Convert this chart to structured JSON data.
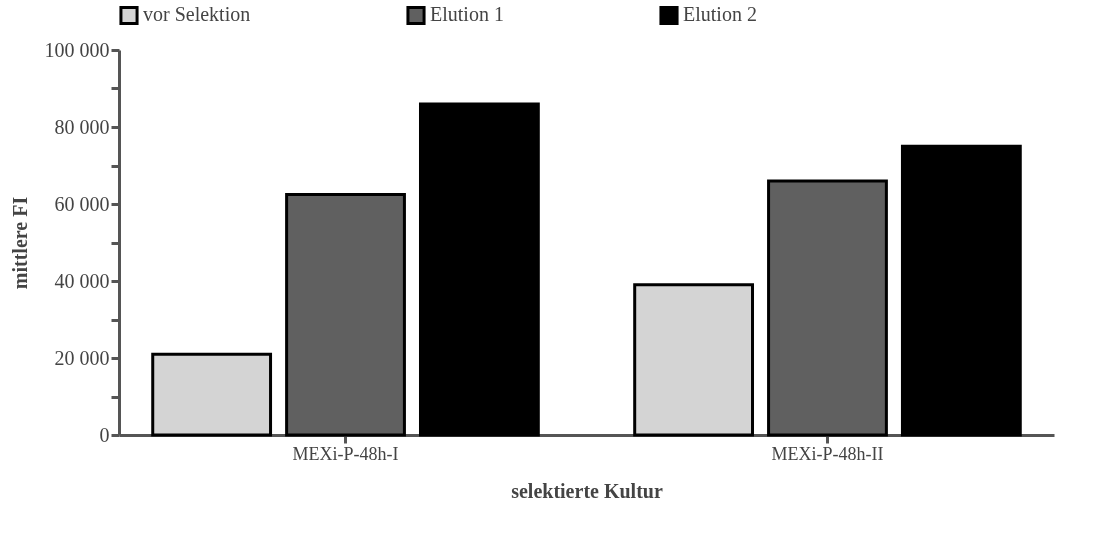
{
  "chart_data": {
    "type": "bar",
    "xlabel": "selektierte Kultur",
    "ylabel": "mittlere FI",
    "categories": [
      "MEXi-P-48h-I",
      "MEXi-P-48h-II"
    ],
    "series": [
      {
        "name": "vor Selektion",
        "color": "#d4d4d4",
        "values": [
          21000,
          39000
        ]
      },
      {
        "name": "Elution 1",
        "color": "#606060",
        "values": [
          62500,
          66000
        ]
      },
      {
        "name": "Elution 2",
        "color": "#000000",
        "values": [
          86000,
          75000
        ]
      }
    ],
    "ylim": [
      0,
      100000
    ],
    "yticks": [
      {
        "value": 0,
        "label": "0"
      },
      {
        "value": 10000,
        "label": null
      },
      {
        "value": 20000,
        "label": "20 000"
      },
      {
        "value": 30000,
        "label": null
      },
      {
        "value": 40000,
        "label": "40 000"
      },
      {
        "value": 50000,
        "label": null
      },
      {
        "value": 60000,
        "label": "60 000"
      },
      {
        "value": 70000,
        "label": null
      },
      {
        "value": 80000,
        "label": "80 000"
      },
      {
        "value": 90000,
        "label": null
      },
      {
        "value": 100000,
        "label": "100 000"
      }
    ],
    "grid": false,
    "legend": "top"
  }
}
